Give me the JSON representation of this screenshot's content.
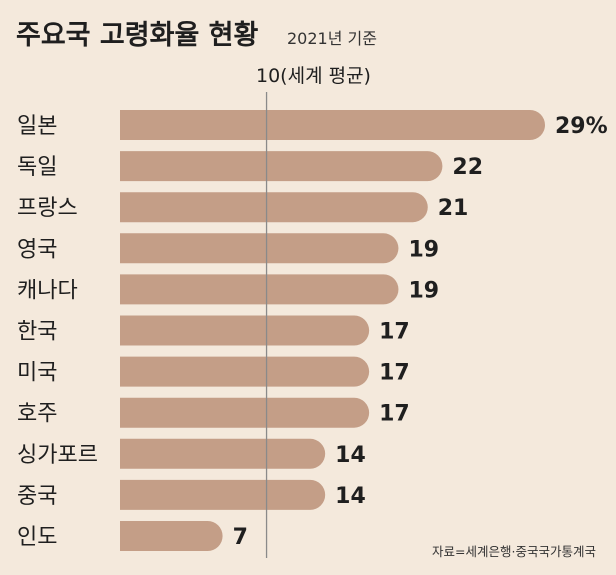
{
  "chart_data": {
    "type": "bar",
    "orientation": "horizontal",
    "title": "주요국 고령화율 현황",
    "subtitle": "2021년 기준",
    "reference_line": {
      "value": 10,
      "label": "10(세계 평균)"
    },
    "categories": [
      "일본",
      "독일",
      "프랑스",
      "영국",
      "캐나다",
      "한국",
      "미국",
      "호주",
      "싱가포르",
      "중국",
      "인도"
    ],
    "values": [
      29,
      22,
      21,
      19,
      19,
      17,
      17,
      17,
      14,
      14,
      7
    ],
    "value_labels": [
      "29%",
      "22",
      "21",
      "19",
      "19",
      "17",
      "17",
      "17",
      "14",
      "14",
      "7"
    ],
    "xlim": [
      0,
      29
    ],
    "source": "자료=세계은행·중국국가통계국",
    "bar_color": "#c49e87",
    "background_color": "#f4e9dc",
    "reference_line_color": "#8a8a8a"
  }
}
